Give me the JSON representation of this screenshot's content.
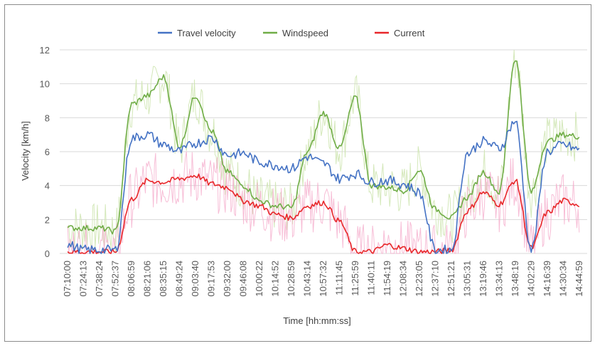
{
  "chart_data": {
    "type": "line",
    "title": "",
    "xlabel": "Time  [hh:mm:ss]",
    "ylabel": "Velocity  [km/h]",
    "ylim": [
      0,
      12
    ],
    "yticks": [
      0,
      2,
      4,
      6,
      8,
      10,
      12
    ],
    "grid": "horizontal",
    "legend_position": "top",
    "categories": [
      "07:10:00",
      "07:24:13",
      "07:38:24",
      "07:52:37",
      "08:06:59",
      "08:21:06",
      "08:35:15",
      "08:49:24",
      "09:03:40",
      "09:17:53",
      "09:32:00",
      "09:46:08",
      "10:00:22",
      "10:14:52",
      "10:28:59",
      "10:43:14",
      "10:57:32",
      "11:11:45",
      "11:25:59",
      "11:40:11",
      "11:54:19",
      "12:08:34",
      "12:23:05",
      "12:37:10",
      "12:51:21",
      "13:05:31",
      "13:19:46",
      "13:34:13",
      "13:48:19",
      "14:02:29",
      "14:16:39",
      "14:30:34",
      "14:44:59"
    ],
    "series": [
      {
        "name": "Travel velocity",
        "color": "#4472c4",
        "values": [
          0.5,
          0.2,
          0.2,
          0.2,
          6.8,
          7.0,
          6.4,
          6.0,
          6.5,
          6.8,
          5.8,
          5.9,
          5.4,
          5.2,
          5.0,
          5.7,
          5.3,
          4.4,
          4.7,
          4.2,
          4.3,
          4.1,
          3.6,
          0.2,
          0.2,
          5.9,
          6.6,
          6.2,
          7.8,
          0.2,
          6.0,
          6.4,
          6.1
        ]
      },
      {
        "name": "Windspeed",
        "color": "#70ad47",
        "values": [
          1.5,
          1.5,
          1.5,
          1.3,
          8.8,
          9.3,
          10.4,
          6.3,
          9.3,
          7.2,
          4.8,
          4.0,
          3.1,
          2.8,
          2.7,
          6.0,
          8.3,
          6.2,
          9.2,
          4.0,
          3.9,
          3.7,
          4.9,
          2.6,
          2.1,
          3.3,
          4.8,
          3.6,
          11.5,
          3.6,
          6.6,
          7.0,
          6.9
        ]
      },
      {
        "name": "Current",
        "color": "#e8272a",
        "values": [
          0.1,
          0.1,
          0.1,
          0.1,
          3.2,
          4.3,
          4.2,
          4.4,
          4.6,
          4.1,
          3.9,
          3.1,
          2.8,
          2.3,
          2.1,
          2.8,
          3.0,
          1.9,
          0.1,
          0.1,
          0.5,
          0.3,
          0.1,
          0.1,
          0.2,
          2.5,
          3.6,
          2.9,
          4.3,
          0.3,
          2.4,
          3.1,
          2.9
        ]
      }
    ],
    "noise_color_windspeed": "#cfe5b3",
    "noise_color_current": "#f4a7c8",
    "gridline_color": "#d9d9d9"
  }
}
